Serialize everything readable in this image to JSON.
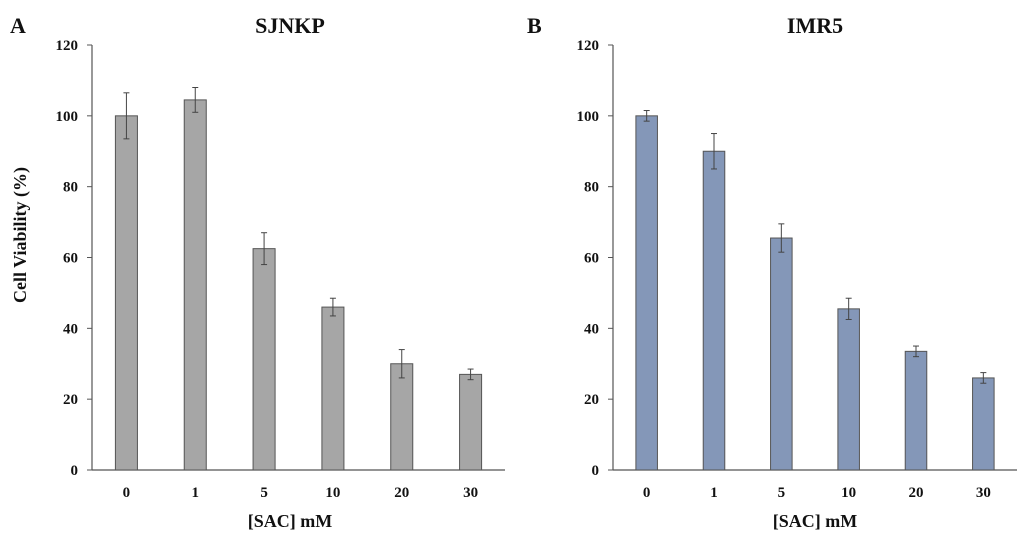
{
  "chart_data": [
    {
      "type": "bar",
      "panel_label": "A",
      "title": "SJNKP",
      "categories": [
        "0",
        "1",
        "5",
        "10",
        "20",
        "30"
      ],
      "values": [
        100,
        104.5,
        62.5,
        46,
        30,
        27
      ],
      "errors": [
        6.5,
        3.5,
        4.5,
        2.5,
        4,
        1.5
      ],
      "ylim": [
        0,
        120
      ],
      "yticks": [
        "0",
        "20",
        "40",
        "60",
        "80",
        "100",
        "120"
      ],
      "ylabel": "Cell Viability (%)",
      "xlabel": "[SAC]   mM",
      "bar_color": "#a6a6a6",
      "grid": false,
      "legend": "none"
    },
    {
      "type": "bar",
      "panel_label": "B",
      "title": "IMR5",
      "categories": [
        "0",
        "1",
        "5",
        "10",
        "20",
        "30"
      ],
      "values": [
        100,
        90,
        65.5,
        45.5,
        33.5,
        26
      ],
      "errors": [
        1.5,
        5,
        4,
        3,
        1.5,
        1.5
      ],
      "ylim": [
        0,
        120
      ],
      "yticks": [
        "0",
        "20",
        "40",
        "60",
        "80",
        "100",
        "120"
      ],
      "ylabel": "",
      "xlabel": "[SAC]   mM",
      "bar_color": "#8497b8",
      "grid": false,
      "legend": "none"
    }
  ]
}
